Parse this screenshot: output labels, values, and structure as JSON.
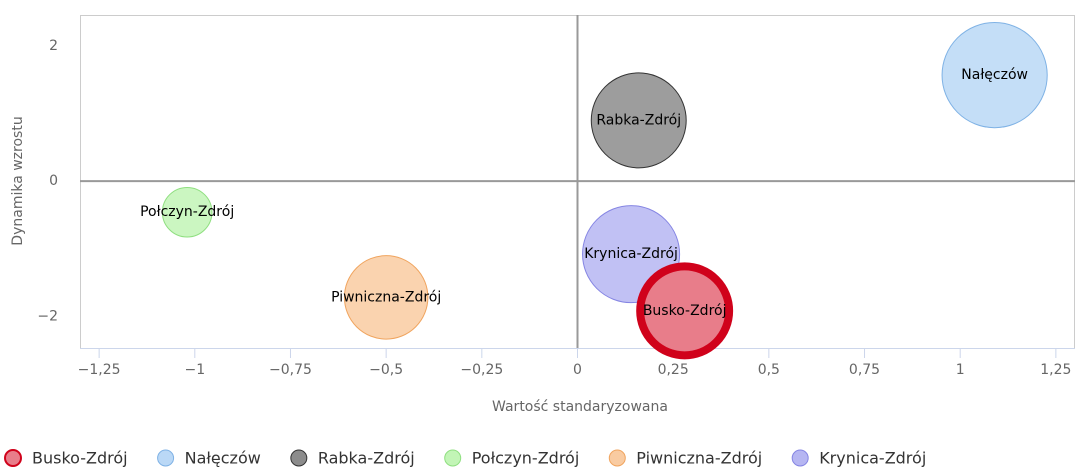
{
  "chart_data": {
    "type": "bubble",
    "x_label": "Wartość standaryzowana",
    "y_label": "Dynamika wzrostu",
    "xlim": [
      -1.3,
      1.3
    ],
    "ylim": [
      -2.47,
      2.46
    ],
    "xticks": [
      {
        "value": -1.25,
        "label": "−1,25"
      },
      {
        "value": -1,
        "label": "−1"
      },
      {
        "value": -0.75,
        "label": "−0,75"
      },
      {
        "value": -0.5,
        "label": "−0,5"
      },
      {
        "value": -0.25,
        "label": "−0,25"
      },
      0,
      {
        "value": 0.25,
        "label": "0,25"
      },
      {
        "value": 0.5,
        "label": "0,5"
      },
      {
        "value": 0.75,
        "label": "0,75"
      },
      1,
      {
        "value": 1.25,
        "label": "1,25"
      }
    ],
    "yticks": [
      {
        "value": -2,
        "label": "−2"
      },
      0,
      2
    ],
    "zero_lines": true,
    "legend": "bottom",
    "series": [
      {
        "name": "Busko-Zdrój",
        "color": "#e87d8a",
        "border": "#d0021b",
        "selected": true,
        "x": [
          0.28
        ],
        "values": [
          -1.92
        ],
        "sizes": [
          2.2
        ]
      },
      {
        "name": "Nałęczów",
        "color": "#bad8f6",
        "border": "#7fb2e5",
        "x": [
          1.09
        ],
        "values": [
          1.57
        ],
        "sizes": [
          2.7
        ]
      },
      {
        "name": "Rabka-Zdrój",
        "color": "#8c8c8c",
        "border": "#333333",
        "x": [
          0.16
        ],
        "values": [
          0.9
        ],
        "sizes": [
          2.2
        ]
      },
      {
        "name": "Połczyn-Zdrój",
        "color": "#c2f5b6",
        "border": "#8fdf80",
        "x": [
          -1.02
        ],
        "values": [
          -0.46
        ],
        "sizes": [
          0.6
        ]
      },
      {
        "name": "Piwniczna-Zdrój",
        "color": "#f9cba1",
        "border": "#f0a45e",
        "x": [
          -0.5
        ],
        "values": [
          -1.72
        ],
        "sizes": [
          1.7
        ]
      },
      {
        "name": "Krynica-Zdrój",
        "color": "#b6b6f2",
        "border": "#8585e3",
        "x": [
          0.14
        ],
        "values": [
          -1.08
        ],
        "sizes": [
          2.3
        ]
      }
    ]
  }
}
